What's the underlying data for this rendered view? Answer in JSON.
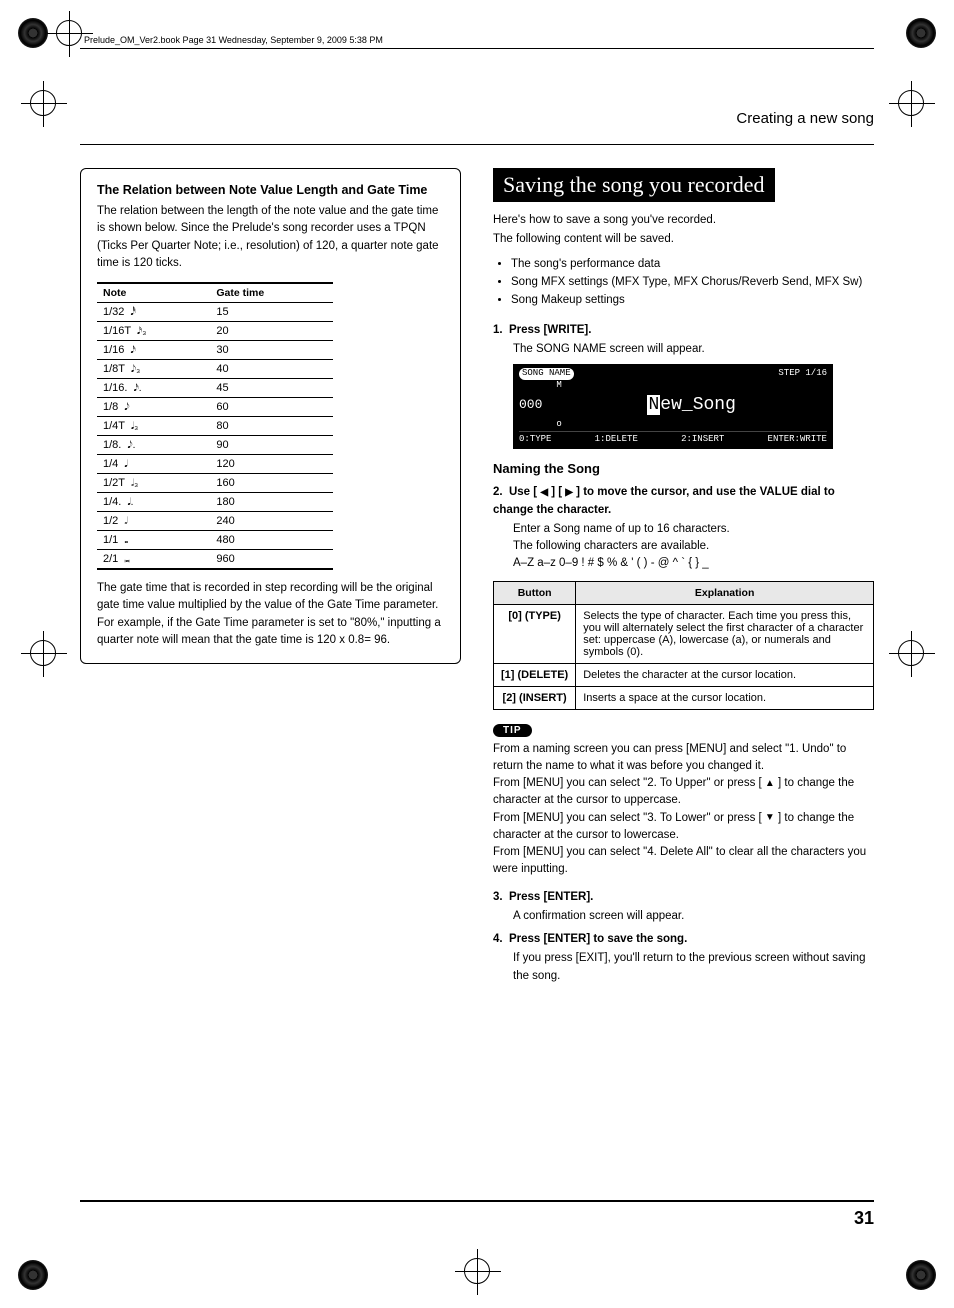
{
  "running_head": "Prelude_OM_Ver2.book  Page 31  Wednesday, September 9, 2009  5:38 PM",
  "section_title": "Creating a new song",
  "page_number": "31",
  "left": {
    "box_title": "The Relation between Note Value Length and Gate Time",
    "box_p1": "The relation between the length of the note value and the gate time is shown below. Since the Prelude's song recorder uses a TPQN (Ticks Per Quarter Note; i.e., resolution) of 120, a quarter note gate time is 120 ticks.",
    "table": {
      "head_note": "Note",
      "head_gate": "Gate time",
      "rows": [
        {
          "note": "1/32",
          "glyph": "𝅘𝅥𝅰",
          "gate": "15"
        },
        {
          "note": "1/16T",
          "glyph": "𝅘𝅥𝅯₃",
          "gate": "20"
        },
        {
          "note": "1/16",
          "glyph": "𝅘𝅥𝅯",
          "gate": "30"
        },
        {
          "note": "1/8T",
          "glyph": "𝅘𝅥𝅮₃",
          "gate": "40"
        },
        {
          "note": "1/16.",
          "glyph": "𝅘𝅥𝅯.",
          "gate": "45"
        },
        {
          "note": "1/8",
          "glyph": "𝅘𝅥𝅮",
          "gate": "60"
        },
        {
          "note": "1/4T",
          "glyph": "𝅘𝅥₃",
          "gate": "80"
        },
        {
          "note": "1/8.",
          "glyph": "𝅘𝅥𝅮.",
          "gate": "90"
        },
        {
          "note": "1/4",
          "glyph": "𝅘𝅥",
          "gate": "120"
        },
        {
          "note": "1/2T",
          "glyph": "𝅗𝅥₃",
          "gate": "160"
        },
        {
          "note": "1/4.",
          "glyph": "𝅘𝅥.",
          "gate": "180"
        },
        {
          "note": "1/2",
          "glyph": "𝅗𝅥",
          "gate": "240"
        },
        {
          "note": "1/1",
          "glyph": "𝅝",
          "gate": "480"
        },
        {
          "note": "2/1",
          "glyph": "𝅜",
          "gate": "960"
        }
      ]
    },
    "box_p2": "The gate time that is recorded in step recording will be the original gate time value multiplied by the value of the Gate Time parameter. For example, if the Gate Time parameter is set to \"80%,\" inputting a quarter note will mean that the gate time is 120 x 0.8= 96."
  },
  "right": {
    "banner": "Saving the song you recorded",
    "intro1": "Here's how to save a song you've recorded.",
    "intro2": "The following content will be saved.",
    "bullets": [
      "The song's performance data",
      "Song MFX settings (MFX Type, MFX Chorus/Reverb Send, MFX Sw)",
      "Song Makeup settings"
    ],
    "step1_label": "1.",
    "step1_text": "Press [WRITE].",
    "step1_body": "The SONG NAME screen will appear.",
    "lcd": {
      "tab": "SONG NAME",
      "step": "STEP  1/16",
      "num": "000",
      "upper": "M",
      "name_pre": "N",
      "name_rest": "ew_Song",
      "lower": "o",
      "s0": "0:TYPE",
      "s1": "1:DELETE",
      "s2": "2:INSERT",
      "s3": "ENTER:WRITE"
    },
    "naming_heading": "Naming the Song",
    "step2_label": "2.",
    "step2_text_a": "Use [ ",
    "step2_text_b": " ] [ ",
    "step2_text_c": " ] to move the cursor, and use the VALUE dial to change the character.",
    "step2_body1": "Enter a Song name of up to 16 characters.",
    "step2_body2": "The following characters are available.",
    "step2_body3": "A–Z a–z 0–9 ! # $ % & ' ( ) - @ ^ ` { } _",
    "btn_table": {
      "h1": "Button",
      "h2": "Explanation",
      "rows": [
        {
          "b": "[0] (TYPE)",
          "e": "Selects the type of character. Each time you press this, you will alternately select the first character of a character set: uppercase (A), lowercase (a), or numerals and symbols (0)."
        },
        {
          "b": "[1] (DELETE)",
          "e": "Deletes the character at the cursor location."
        },
        {
          "b": "[2] (INSERT)",
          "e": "Inserts a space at the cursor location."
        }
      ]
    },
    "tip_label": "TIP",
    "tip1": "From a naming screen you can press [MENU] and select \"1. Undo\" to return the name to what it was before you changed it.",
    "tip2a": "From [MENU] you can select \"2. To Upper\" or press [ ",
    "tip2b": " ] to change the character at the cursor to uppercase.",
    "tip3a": "From [MENU] you can select \"3. To Lower\" or press [ ",
    "tip3b": " ] to change the character at the cursor to lowercase.",
    "tip4": "From [MENU] you can select \"4. Delete All\" to clear all the characters you were inputting.",
    "step3_label": "3.",
    "step3_text": "Press [ENTER].",
    "step3_body": "A confirmation screen will appear.",
    "step4_label": "4.",
    "step4_text": "Press [ENTER] to save the song.",
    "step4_body": "If you press [EXIT], you'll return to the previous screen without saving the song."
  }
}
